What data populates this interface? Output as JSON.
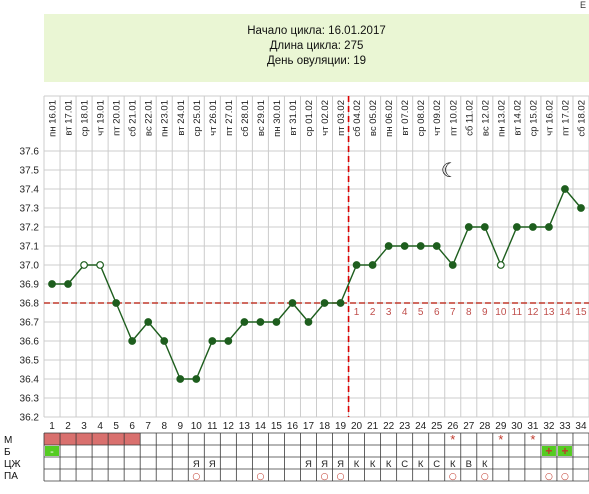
{
  "info": {
    "cycle_start": "Начало цикла: 16.01.2017",
    "cycle_length": "Длина цикла: 275",
    "ovulation_day": "День овуляции: 19"
  },
  "corner_mark": "Е",
  "colors": {
    "line": "#1e5e1e",
    "grid": "#cccccc",
    "baseline": "#c0392b",
    "ovulation": "#dd0000",
    "info_bg": "#eaf6d4",
    "period_bar": "#d9706e",
    "green_cell": "#55cc22",
    "luteal_numbers": "#c0504d"
  },
  "moon_icon": "☾",
  "chart_data": {
    "type": "line",
    "title": "",
    "xlabel": "",
    "ylabel": "",
    "x": [
      1,
      2,
      3,
      4,
      5,
      6,
      7,
      8,
      9,
      10,
      11,
      12,
      13,
      14,
      15,
      16,
      17,
      18,
      19,
      20,
      21,
      22,
      23,
      24,
      25,
      26,
      27,
      28,
      29,
      30,
      31,
      32,
      33,
      34
    ],
    "dates": [
      "16.01",
      "17.01",
      "18.01",
      "19.01",
      "20.01",
      "21.01",
      "22.01",
      "23.01",
      "24.01",
      "25.01",
      "26.01",
      "27.01",
      "28.01",
      "29.01",
      "30.01",
      "31.01",
      "01.02",
      "02.02",
      "03.02",
      "04.02",
      "05.02",
      "06.02",
      "07.02",
      "08.02",
      "09.02",
      "10.02",
      "11.02",
      "12.02",
      "13.02",
      "14.02",
      "15.02",
      "16.02",
      "17.02",
      "18.02"
    ],
    "weekdays": [
      "пн",
      "вт",
      "ср",
      "чт",
      "пт",
      "сб",
      "вс",
      "пн",
      "вт",
      "ср",
      "чт",
      "пт",
      "сб",
      "вс",
      "пн",
      "вт",
      "ср",
      "чт",
      "пт",
      "сб",
      "вс",
      "пн",
      "вт",
      "ср",
      "чт",
      "пт",
      "сб",
      "вс",
      "пн",
      "вт",
      "ср",
      "чт",
      "пт",
      "сб"
    ],
    "series": [
      {
        "values": [
          36.9,
          36.9,
          37.0,
          37.0,
          36.8,
          36.6,
          36.7,
          36.6,
          36.4,
          36.4,
          36.6,
          36.6,
          36.7,
          36.7,
          36.7,
          36.8,
          36.7,
          36.8,
          36.8,
          37.0,
          37.0,
          37.1,
          37.1,
          37.1,
          37.1,
          37.0,
          37.2,
          37.2,
          37.0,
          37.2,
          37.2,
          37.2,
          37.4,
          37.3
        ],
        "open_markers": [
          3,
          4,
          29
        ]
      }
    ],
    "ylim": [
      36.2,
      37.6
    ],
    "yticks": [
      "36.2",
      "36.3",
      "36.4",
      "36.5",
      "36.6",
      "36.7",
      "36.8",
      "36.9",
      "37.0",
      "37.1",
      "37.2",
      "37.3",
      "37.4",
      "37.5",
      "37.6"
    ],
    "baseline": 36.8,
    "ovulation_day": 19,
    "luteal_numbers": [
      "1",
      "2",
      "3",
      "4",
      "5",
      "6",
      "7",
      "8",
      "9",
      "10",
      "11",
      "12",
      "13",
      "14",
      "15"
    ],
    "grid": true,
    "legend": "none"
  },
  "table": {
    "row_labels": [
      "М",
      "Б",
      "ЦЖ",
      "ПА"
    ],
    "m_period_days": [
      1,
      2,
      3,
      4,
      5,
      6
    ],
    "m_stars": [
      26,
      29,
      31
    ],
    "m_star_symbol": "*",
    "b_minus_day": 1,
    "b_minus_symbol": "-",
    "b_plus_days": [
      32,
      33
    ],
    "b_plus_symbol": "+",
    "cm": [
      {
        "day": 10,
        "text": "Я"
      },
      {
        "day": 11,
        "text": "Я"
      },
      {
        "day": 17,
        "text": "Я"
      },
      {
        "day": 18,
        "text": "Я"
      },
      {
        "day": 19,
        "text": "Я"
      },
      {
        "day": 20,
        "text": "К"
      },
      {
        "day": 21,
        "text": "К"
      },
      {
        "day": 22,
        "text": "К"
      },
      {
        "day": 23,
        "text": "С"
      },
      {
        "day": 24,
        "text": "К"
      },
      {
        "day": 25,
        "text": "С"
      },
      {
        "day": 26,
        "text": "К"
      },
      {
        "day": 27,
        "text": "В"
      },
      {
        "day": 28,
        "text": "К"
      }
    ],
    "pa_days": [
      10,
      14,
      18,
      19,
      26,
      28,
      32,
      33
    ],
    "pa_symbol": "○"
  }
}
